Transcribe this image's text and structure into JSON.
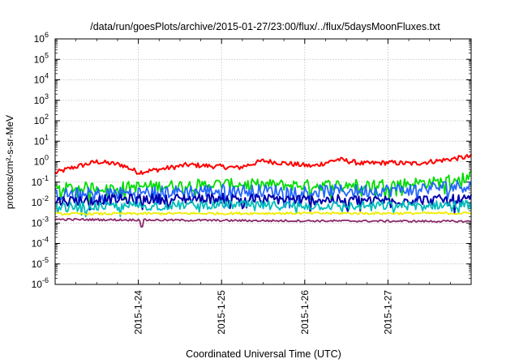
{
  "chart_data": {
    "type": "line",
    "title": "/data/run/goesPlots/archive/2015-01-27/23:00/flux/../flux/5daysMoonFluxes.txt",
    "xlabel": "Coordinated Universal Time (UTC)",
    "ylabel": "protons/cm²-s-sr-MeV",
    "yscale": "log",
    "ylim_exponents": [
      -6,
      6
    ],
    "y_tick_labels": [
      "10-6",
      "10-5",
      "10-4",
      "10-3",
      "10-2",
      "10-1",
      "100",
      "101",
      "102",
      "103",
      "104",
      "105",
      "106"
    ],
    "xlim_days": [
      0,
      5
    ],
    "x_ticks": [
      {
        "label": "2015-1-24",
        "day": 1.0
      },
      {
        "label": "2015-1-25",
        "day": 2.0
      },
      {
        "label": "2015-1-26",
        "day": 3.0
      },
      {
        "label": "2015-1-27",
        "day": 4.0
      }
    ],
    "grid": true,
    "series": [
      {
        "color": "#ff0000",
        "knots": [
          [
            0,
            0.28
          ],
          [
            0.2,
            0.5
          ],
          [
            0.5,
            1.0
          ],
          [
            0.8,
            0.7
          ],
          [
            1.0,
            0.3
          ],
          [
            1.3,
            0.45
          ],
          [
            1.6,
            0.7
          ],
          [
            1.9,
            0.6
          ],
          [
            2.2,
            0.5
          ],
          [
            2.5,
            1.1
          ],
          [
            2.8,
            0.8
          ],
          [
            3.1,
            0.6
          ],
          [
            3.4,
            1.3
          ],
          [
            3.7,
            0.8
          ],
          [
            4.0,
            0.9
          ],
          [
            4.3,
            0.8
          ],
          [
            4.6,
            1.1
          ],
          [
            4.85,
            1.5
          ],
          [
            5.0,
            1.8
          ]
        ],
        "noise": 0.12
      },
      {
        "color": "#00dd00",
        "knots": [
          [
            0,
            0.05
          ],
          [
            1.0,
            0.06
          ],
          [
            2.0,
            0.08
          ],
          [
            3.0,
            0.07
          ],
          [
            4.0,
            0.08
          ],
          [
            4.6,
            0.1
          ],
          [
            5.0,
            0.2
          ]
        ],
        "noise": 0.28
      },
      {
        "color": "#2266ff",
        "knots": [
          [
            0,
            0.025
          ],
          [
            1.0,
            0.03
          ],
          [
            2.0,
            0.04
          ],
          [
            3.0,
            0.035
          ],
          [
            4.0,
            0.04
          ],
          [
            5.0,
            0.07
          ]
        ],
        "noise": 0.32
      },
      {
        "color": "#0000aa",
        "knots": [
          [
            0,
            0.012
          ],
          [
            1.0,
            0.015
          ],
          [
            2.0,
            0.016
          ],
          [
            3.0,
            0.014
          ],
          [
            4.0,
            0.013
          ],
          [
            5.0,
            0.014
          ]
        ],
        "noise": 0.25
      },
      {
        "color": "#00bbbb",
        "knots": [
          [
            0,
            0.006
          ],
          [
            1.0,
            0.007
          ],
          [
            2.0,
            0.008
          ],
          [
            3.0,
            0.007
          ],
          [
            4.0,
            0.007
          ],
          [
            5.0,
            0.008
          ]
        ],
        "noise": 0.22
      },
      {
        "color": "#eeee00",
        "knots": [
          [
            0,
            0.0028
          ],
          [
            2.5,
            0.003
          ],
          [
            5.0,
            0.003
          ]
        ],
        "noise": 0.06
      },
      {
        "color": "#8b2a6b",
        "knots": [
          [
            0,
            0.0015
          ],
          [
            2.5,
            0.0013
          ],
          [
            5.0,
            0.0012
          ]
        ],
        "noise": 0.05
      }
    ]
  }
}
